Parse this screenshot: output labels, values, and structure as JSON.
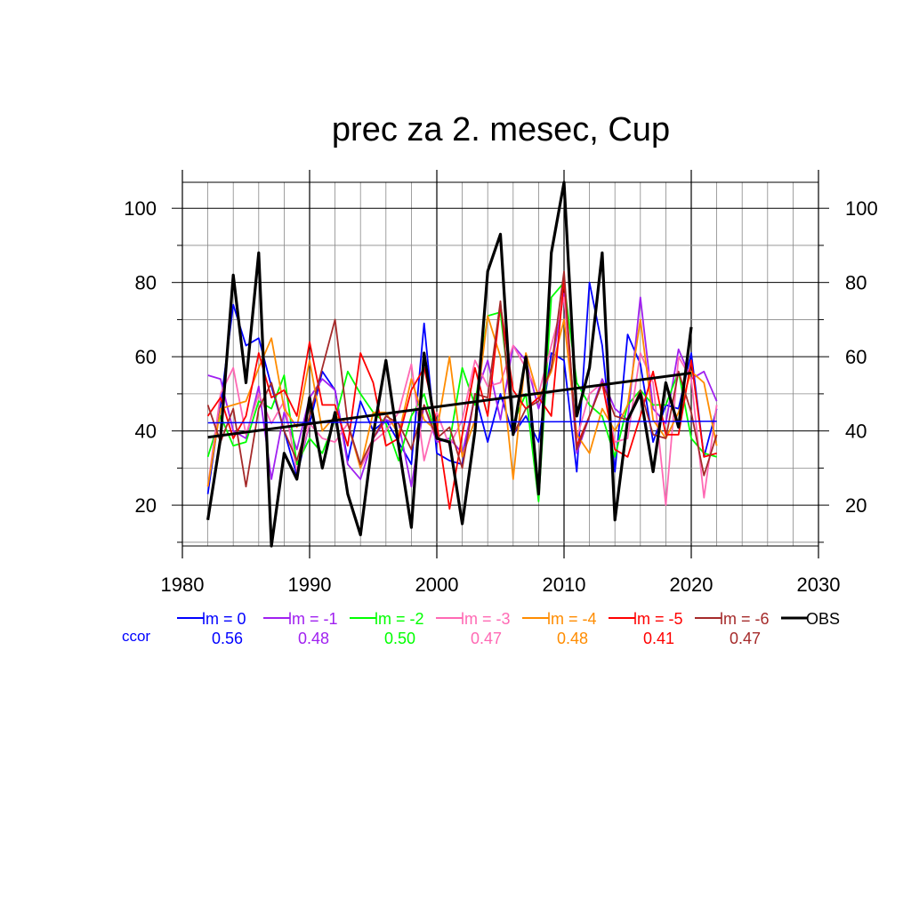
{
  "chart_data": {
    "type": "line",
    "title": "prec za 2. mesec, Cup",
    "xlabel": "",
    "ylabel": "",
    "xlim": [
      1980,
      2030
    ],
    "ylim": [
      9,
      107
    ],
    "x_ticks": [
      1980,
      1990,
      2000,
      2010,
      2020,
      2030
    ],
    "y_ticks": [
      20,
      40,
      60,
      80,
      100
    ],
    "grid": true,
    "legend_position": "bottom",
    "ccor_label": "ccor",
    "x": [
      1982,
      1983,
      1984,
      1985,
      1986,
      1987,
      1988,
      1989,
      1990,
      1991,
      1992,
      1993,
      1994,
      1995,
      1996,
      1997,
      1998,
      1999,
      2000,
      2001,
      2002,
      2003,
      2004,
      2005,
      2006,
      2007,
      2008,
      2009,
      2010,
      2011,
      2012,
      2013,
      2014,
      2015,
      2016,
      2017,
      2018,
      2019,
      2020,
      2021,
      2022
    ],
    "series": [
      {
        "name": "lm = 0",
        "color": "#0000ff",
        "ccor": "0.56",
        "values": [
          23,
          47,
          74,
          63,
          65,
          52,
          40,
          28,
          42,
          56,
          51,
          32,
          48,
          40,
          43,
          37,
          31,
          69,
          34,
          32,
          31,
          50,
          37,
          50,
          39,
          44,
          37,
          61,
          59,
          29,
          80,
          63,
          29,
          66,
          58,
          37,
          47,
          46,
          61,
          33,
          46
        ]
      },
      {
        "name": "lm = -1",
        "color": "#a020f0",
        "ccor": "0.48",
        "values": [
          55,
          54,
          40,
          38,
          52,
          27,
          45,
          35,
          49,
          54,
          51,
          31,
          27,
          38,
          43,
          42,
          25,
          47,
          37,
          38,
          34,
          49,
          59,
          43,
          63,
          59,
          46,
          57,
          77,
          34,
          44,
          54,
          46,
          43,
          76,
          46,
          42,
          62,
          54,
          56,
          48
        ]
      },
      {
        "name": "lm = -2",
        "color": "#00ff00",
        "ccor": "0.50",
        "values": [
          33,
          44,
          36,
          37,
          48,
          46,
          55,
          31,
          38,
          34,
          43,
          56,
          50,
          45,
          42,
          32,
          44,
          50,
          38,
          37,
          57,
          47,
          71,
          72,
          42,
          50,
          21,
          76,
          80,
          53,
          47,
          44,
          33,
          47,
          51,
          47,
          47,
          56,
          38,
          34,
          33
        ]
      },
      {
        "name": "lm = -3",
        "color": "#ff69b4",
        "ccor": "0.47",
        "values": [
          25,
          50,
          57,
          39,
          50,
          42,
          48,
          29,
          42,
          38,
          37,
          42,
          30,
          37,
          40,
          45,
          58,
          32,
          45,
          36,
          43,
          59,
          52,
          53,
          63,
          57,
          50,
          63,
          76,
          38,
          50,
          53,
          37,
          38,
          61,
          53,
          20,
          60,
          54,
          22,
          47
        ]
      },
      {
        "name": "lm = -4",
        "color": "#ff8c00",
        "ccor": "0.48",
        "values": [
          25,
          46,
          47,
          48,
          57,
          65,
          46,
          41,
          59,
          40,
          44,
          42,
          30,
          45,
          45,
          39,
          54,
          43,
          40,
          60,
          33,
          43,
          71,
          60,
          27,
          61,
          49,
          56,
          70,
          39,
          34,
          46,
          40,
          47,
          70,
          43,
          38,
          45,
          56,
          53,
          36
        ]
      },
      {
        "name": "lm = -5",
        "color": "#ff0000",
        "ccor": "0.41",
        "values": [
          44,
          49,
          38,
          44,
          61,
          49,
          51,
          44,
          64,
          47,
          47,
          36,
          61,
          53,
          36,
          38,
          51,
          57,
          42,
          19,
          39,
          57,
          44,
          74,
          51,
          46,
          49,
          44,
          81,
          36,
          44,
          53,
          35,
          33,
          44,
          56,
          39,
          39,
          59,
          33,
          34
        ]
      },
      {
        "name": "lm = -6",
        "color": "#a52a2a",
        "ccor": "0.47",
        "values": [
          47,
          37,
          46,
          25,
          46,
          53,
          40,
          32,
          44,
          57,
          70,
          42,
          31,
          38,
          44,
          42,
          35,
          47,
          38,
          41,
          30,
          50,
          49,
          75,
          39,
          46,
          48,
          57,
          83,
          35,
          44,
          53,
          44,
          43,
          51,
          39,
          38,
          56,
          45,
          28,
          39
        ]
      },
      {
        "name": "OBS",
        "color": "#000000",
        "ccor": "",
        "values": [
          16,
          38,
          82,
          53,
          88,
          9,
          34,
          27,
          49,
          30,
          45,
          23,
          12,
          39,
          59,
          36,
          14,
          61,
          38,
          37,
          15,
          40,
          83,
          93,
          39,
          60,
          23,
          88,
          107,
          44,
          57,
          88,
          16,
          43,
          50,
          29,
          53,
          41,
          68,
          null,
          null
        ]
      }
    ],
    "trend_lines": [
      {
        "series": "lm = 0",
        "x": [
          1982,
          2022
        ],
        "y": [
          42.2,
          42.6
        ],
        "color": "#0000ff"
      },
      {
        "series": "OBS",
        "x": [
          1982,
          2020
        ],
        "y": [
          38.3,
          55.6
        ],
        "color": "#000000"
      }
    ]
  }
}
